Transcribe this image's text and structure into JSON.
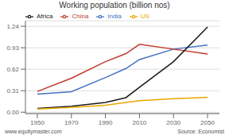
{
  "chart_data": {
    "type": "line",
    "title": "Working population  (billion nos)",
    "x": [
      1950,
      1970,
      1990,
      2002,
      2010,
      2030,
      2050
    ],
    "series": [
      {
        "name": "India",
        "color": "#4472c4",
        "values": [
          0.26,
          0.295,
          0.5,
          0.63,
          0.76,
          0.91,
          0.97
        ]
      },
      {
        "name": "China",
        "color": "#c0392b",
        "values": [
          0.3,
          0.49,
          0.73,
          0.845,
          0.98,
          0.91,
          0.84
        ]
      },
      {
        "name": "Africa",
        "color": "#1a1a1a",
        "values": [
          0.055,
          0.085,
          0.14,
          0.21,
          0.36,
          0.73,
          1.23
        ]
      },
      {
        "name": "US",
        "color": "#e8a800",
        "values": [
          0.045,
          0.07,
          0.1,
          0.14,
          0.165,
          0.195,
          0.215
        ]
      }
    ],
    "xlim": [
      1943,
      2057
    ],
    "xticks": [
      1950,
      1970,
      1990,
      2010,
      2030,
      2050
    ],
    "ylim": [
      -0.02,
      1.32
    ],
    "yticks": [
      {
        "value": 0,
        "label": "0.00"
      },
      0.31,
      0.62,
      0.93,
      1.24
    ],
    "grid": true,
    "legend": "upper left",
    "annotations": [
      "www.equitymaster.com",
      "Source: Economist"
    ]
  }
}
